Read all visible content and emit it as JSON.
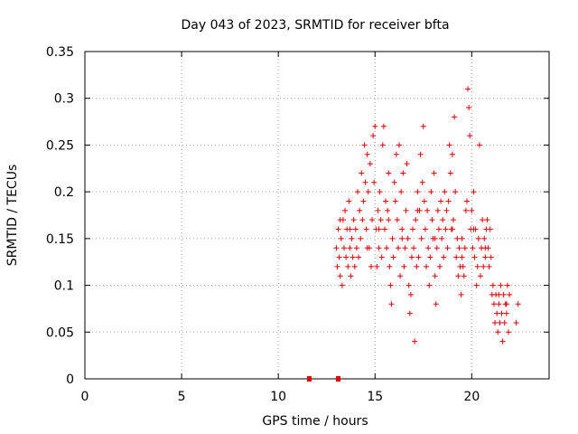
{
  "chart_data": {
    "type": "scatter",
    "title": "Day 043 of 2023, SRMTID for receiver bfta",
    "xlabel": "GPS time / hours",
    "ylabel": "SRMTID / TECUs",
    "xlim": [
      0,
      24
    ],
    "ylim": [
      0,
      0.35
    ],
    "x_ticks": [
      0,
      5,
      10,
      15,
      20
    ],
    "y_ticks": [
      0,
      0.05,
      0.1,
      0.15,
      0.2,
      0.25,
      0.3,
      0.35
    ],
    "grid": true,
    "legend": "none",
    "marker": "plus",
    "color": "#e00000",
    "series": [
      {
        "values_note": "approximate digitized points",
        "points": [
          [
            11.6,
            0.0
          ],
          [
            13.1,
            0.0
          ],
          [
            13.0,
            0.14
          ],
          [
            13.05,
            0.12
          ],
          [
            13.1,
            0.16
          ],
          [
            13.15,
            0.13
          ],
          [
            13.2,
            0.11
          ],
          [
            13.25,
            0.15
          ],
          [
            13.3,
            0.1
          ],
          [
            13.35,
            0.17
          ],
          [
            13.4,
            0.14
          ],
          [
            13.45,
            0.18
          ],
          [
            13.5,
            0.13
          ],
          [
            13.55,
            0.16
          ],
          [
            13.6,
            0.12
          ],
          [
            13.65,
            0.19
          ],
          [
            13.7,
            0.14
          ],
          [
            13.75,
            0.11
          ],
          [
            13.8,
            0.15
          ],
          [
            13.85,
            0.13
          ],
          [
            13.9,
            0.17
          ],
          [
            13.95,
            0.12
          ],
          [
            14.0,
            0.16
          ],
          [
            14.05,
            0.14
          ],
          [
            14.1,
            0.2
          ],
          [
            14.15,
            0.13
          ],
          [
            14.2,
            0.18
          ],
          [
            14.25,
            0.15
          ],
          [
            14.3,
            0.22
          ],
          [
            14.35,
            0.17
          ],
          [
            14.4,
            0.19
          ],
          [
            14.45,
            0.25
          ],
          [
            14.5,
            0.21
          ],
          [
            14.55,
            0.16
          ],
          [
            14.6,
            0.24
          ],
          [
            14.65,
            0.2
          ],
          [
            14.7,
            0.14
          ],
          [
            14.75,
            0.23
          ],
          [
            14.8,
            0.12
          ],
          [
            14.85,
            0.17
          ],
          [
            14.9,
            0.26
          ],
          [
            14.95,
            0.21
          ],
          [
            15.0,
            0.27
          ],
          [
            15.05,
            0.16
          ],
          [
            15.1,
            0.12
          ],
          [
            15.15,
            0.18
          ],
          [
            15.2,
            0.14
          ],
          [
            15.25,
            0.2
          ],
          [
            15.3,
            0.17
          ],
          [
            15.35,
            0.13
          ],
          [
            15.4,
            0.25
          ],
          [
            15.45,
            0.27
          ],
          [
            15.5,
            0.16
          ],
          [
            15.55,
            0.19
          ],
          [
            15.6,
            0.14
          ],
          [
            15.65,
            0.18
          ],
          [
            15.7,
            0.22
          ],
          [
            15.75,
            0.12
          ],
          [
            15.8,
            0.1
          ],
          [
            15.85,
            0.08
          ],
          [
            15.9,
            0.15
          ],
          [
            15.95,
            0.13
          ],
          [
            16.0,
            0.21
          ],
          [
            16.05,
            0.19
          ],
          [
            16.1,
            0.24
          ],
          [
            16.15,
            0.17
          ],
          [
            16.2,
            0.14
          ],
          [
            16.25,
            0.25
          ],
          [
            16.3,
            0.11
          ],
          [
            16.35,
            0.2
          ],
          [
            16.4,
            0.16
          ],
          [
            16.45,
            0.22
          ],
          [
            16.5,
            0.12
          ],
          [
            16.55,
            0.14
          ],
          [
            16.6,
            0.18
          ],
          [
            16.65,
            0.23
          ],
          [
            16.7,
            0.15
          ],
          [
            16.75,
            0.1
          ],
          [
            16.8,
            0.07
          ],
          [
            16.85,
            0.09
          ],
          [
            16.9,
            0.13
          ],
          [
            16.95,
            0.16
          ],
          [
            17.0,
            0.14
          ],
          [
            17.05,
            0.04
          ],
          [
            17.1,
            0.17
          ],
          [
            17.15,
            0.12
          ],
          [
            17.2,
            0.2
          ],
          [
            17.25,
            0.13
          ],
          [
            17.3,
            0.18
          ],
          [
            17.35,
            0.24
          ],
          [
            17.4,
            0.15
          ],
          [
            17.45,
            0.21
          ],
          [
            17.5,
            0.27
          ],
          [
            17.55,
            0.19
          ],
          [
            17.6,
            0.16
          ],
          [
            17.65,
            0.12
          ],
          [
            17.7,
            0.18
          ],
          [
            17.75,
            0.14
          ],
          [
            17.8,
            0.1
          ],
          [
            17.85,
            0.13
          ],
          [
            17.9,
            0.2
          ],
          [
            17.95,
            0.17
          ],
          [
            18.0,
            0.15
          ],
          [
            18.05,
            0.22
          ],
          [
            18.1,
            0.11
          ],
          [
            18.15,
            0.08
          ],
          [
            18.2,
            0.14
          ],
          [
            18.25,
            0.18
          ],
          [
            18.3,
            0.16
          ],
          [
            18.35,
            0.12
          ],
          [
            18.4,
            0.19
          ],
          [
            18.45,
            0.15
          ],
          [
            18.5,
            0.17
          ],
          [
            18.55,
            0.13
          ],
          [
            18.6,
            0.2
          ],
          [
            18.65,
            0.16
          ],
          [
            18.7,
            0.18
          ],
          [
            18.75,
            0.14
          ],
          [
            18.8,
            0.19
          ],
          [
            18.85,
            0.25
          ],
          [
            18.9,
            0.22
          ],
          [
            18.95,
            0.16
          ],
          [
            19.0,
            0.24
          ],
          [
            19.05,
            0.17
          ],
          [
            19.1,
            0.28
          ],
          [
            19.15,
            0.2
          ],
          [
            19.2,
            0.13
          ],
          [
            19.25,
            0.15
          ],
          [
            19.3,
            0.11
          ],
          [
            19.35,
            0.14
          ],
          [
            19.4,
            0.12
          ],
          [
            19.45,
            0.09
          ],
          [
            19.5,
            0.15
          ],
          [
            19.55,
            0.12
          ],
          [
            19.6,
            0.11
          ],
          [
            19.65,
            0.14
          ],
          [
            19.7,
            0.18
          ],
          [
            19.75,
            0.19
          ],
          [
            19.8,
            0.31
          ],
          [
            19.85,
            0.29
          ],
          [
            19.9,
            0.26
          ],
          [
            19.95,
            0.16
          ],
          [
            20.0,
            0.18
          ],
          [
            20.05,
            0.14
          ],
          [
            20.1,
            0.2
          ],
          [
            20.15,
            0.13
          ],
          [
            20.2,
            0.16
          ],
          [
            20.25,
            0.1
          ],
          [
            20.3,
            0.12
          ],
          [
            20.35,
            0.15
          ],
          [
            20.4,
            0.25
          ],
          [
            20.45,
            0.11
          ],
          [
            20.5,
            0.14
          ],
          [
            20.55,
            0.17
          ],
          [
            20.6,
            0.12
          ],
          [
            20.65,
            0.15
          ],
          [
            20.7,
            0.13
          ],
          [
            20.75,
            0.16
          ],
          [
            20.8,
            0.17
          ],
          [
            20.85,
            0.14
          ],
          [
            20.9,
            0.12
          ],
          [
            20.95,
            0.16
          ],
          [
            21.0,
            0.13
          ],
          [
            21.05,
            0.09
          ],
          [
            21.1,
            0.1
          ],
          [
            21.15,
            0.08
          ],
          [
            21.2,
            0.06
          ],
          [
            21.25,
            0.09
          ],
          [
            21.3,
            0.07
          ],
          [
            21.35,
            0.05
          ],
          [
            21.4,
            0.08
          ],
          [
            21.45,
            0.06
          ],
          [
            21.5,
            0.1
          ],
          [
            21.55,
            0.07
          ],
          [
            21.6,
            0.04
          ],
          [
            21.65,
            0.09
          ],
          [
            21.7,
            0.06
          ],
          [
            21.75,
            0.08
          ],
          [
            21.8,
            0.07
          ],
          [
            21.85,
            0.1
          ],
          [
            21.9,
            0.05
          ],
          [
            21.95,
            0.09
          ],
          [
            13.2,
            0.17
          ],
          [
            13.7,
            0.16
          ],
          [
            14.6,
            0.14
          ],
          [
            15.2,
            0.16
          ],
          [
            15.7,
            0.17
          ],
          [
            16.4,
            0.15
          ],
          [
            17.2,
            0.18
          ],
          [
            18.1,
            0.15
          ],
          [
            19.0,
            0.16
          ],
          [
            19.5,
            0.13
          ],
          [
            20.1,
            0.16
          ],
          [
            20.7,
            0.14
          ],
          [
            21.4,
            0.09
          ],
          [
            21.8,
            0.08
          ],
          [
            22.3,
            0.06
          ],
          [
            22.4,
            0.08
          ]
        ]
      }
    ]
  }
}
